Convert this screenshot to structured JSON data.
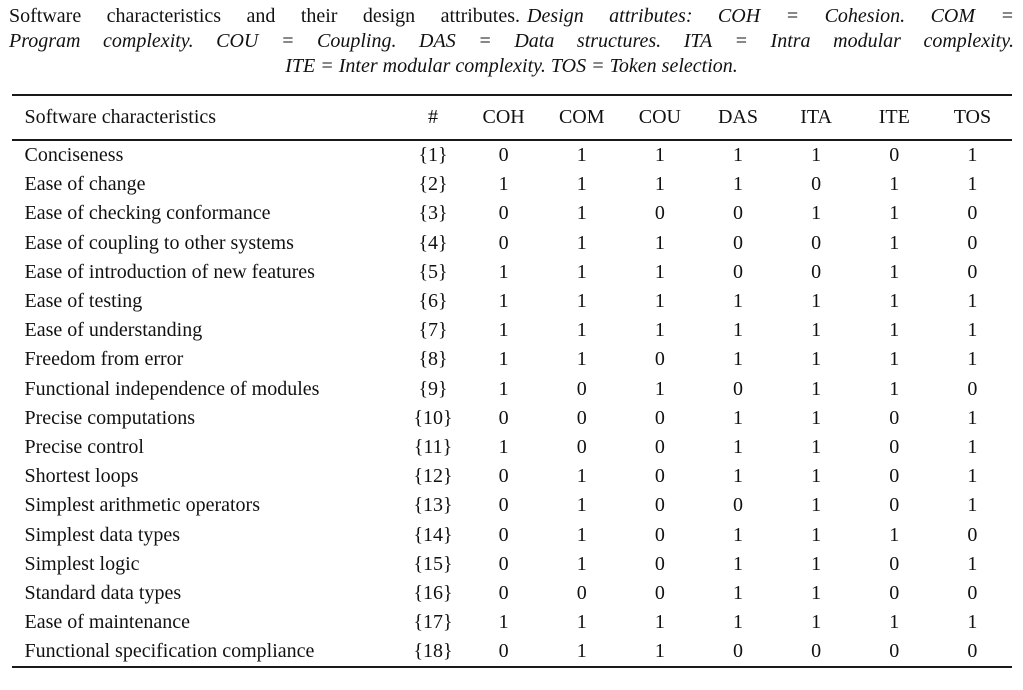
{
  "caption": {
    "line1_roman": "Software characteristics and their design attributes.",
    "line1_italic": "Design attributes: COH = Cohesion. COM =",
    "line2_italic": "Program complexity. COU = Coupling. DAS = Data structures. ITA = Intra modular complexity.",
    "line3_italic": "ITE = Inter modular complexity. TOS = Token selection."
  },
  "chart_data": {
    "type": "table",
    "columns": [
      "Software characteristics",
      "#",
      "COH",
      "COM",
      "COU",
      "DAS",
      "ITA",
      "ITE",
      "TOS"
    ],
    "rows": [
      [
        "Conciseness",
        "{1}",
        "0",
        "1",
        "1",
        "1",
        "1",
        "0",
        "1"
      ],
      [
        "Ease of change",
        "{2}",
        "1",
        "1",
        "1",
        "1",
        "0",
        "1",
        "1"
      ],
      [
        "Ease of checking conformance",
        "{3}",
        "0",
        "1",
        "0",
        "0",
        "1",
        "1",
        "0"
      ],
      [
        "Ease of coupling to other systems",
        "{4}",
        "0",
        "1",
        "1",
        "0",
        "0",
        "1",
        "0"
      ],
      [
        "Ease of introduction of new features",
        "{5}",
        "1",
        "1",
        "1",
        "0",
        "0",
        "1",
        "0"
      ],
      [
        "Ease of testing",
        "{6}",
        "1",
        "1",
        "1",
        "1",
        "1",
        "1",
        "1"
      ],
      [
        "Ease of understanding",
        "{7}",
        "1",
        "1",
        "1",
        "1",
        "1",
        "1",
        "1"
      ],
      [
        "Freedom from error",
        "{8}",
        "1",
        "1",
        "0",
        "1",
        "1",
        "1",
        "1"
      ],
      [
        "Functional independence of modules",
        "{9}",
        "1",
        "0",
        "1",
        "0",
        "1",
        "1",
        "0"
      ],
      [
        "Precise computations",
        "{10}",
        "0",
        "0",
        "0",
        "1",
        "1",
        "0",
        "1"
      ],
      [
        "Precise control",
        "{11}",
        "1",
        "0",
        "0",
        "1",
        "1",
        "0",
        "1"
      ],
      [
        "Shortest loops",
        "{12}",
        "0",
        "1",
        "0",
        "1",
        "1",
        "0",
        "1"
      ],
      [
        "Simplest arithmetic operators",
        "{13}",
        "0",
        "1",
        "0",
        "0",
        "1",
        "0",
        "1"
      ],
      [
        "Simplest data types",
        "{14}",
        "0",
        "1",
        "0",
        "1",
        "1",
        "1",
        "0"
      ],
      [
        "Simplest logic",
        "{15}",
        "0",
        "1",
        "0",
        "1",
        "1",
        "0",
        "1"
      ],
      [
        "Standard data types",
        "{16}",
        "0",
        "0",
        "0",
        "1",
        "1",
        "0",
        "0"
      ],
      [
        "Ease of maintenance",
        "{17}",
        "1",
        "1",
        "1",
        "1",
        "1",
        "1",
        "1"
      ],
      [
        "Functional specification compliance",
        "{18}",
        "0",
        "1",
        "1",
        "0",
        "0",
        "0",
        "0"
      ]
    ]
  },
  "colors": {
    "background": "#ffffff",
    "text": "#111111",
    "rule": "#1a1a1a"
  }
}
